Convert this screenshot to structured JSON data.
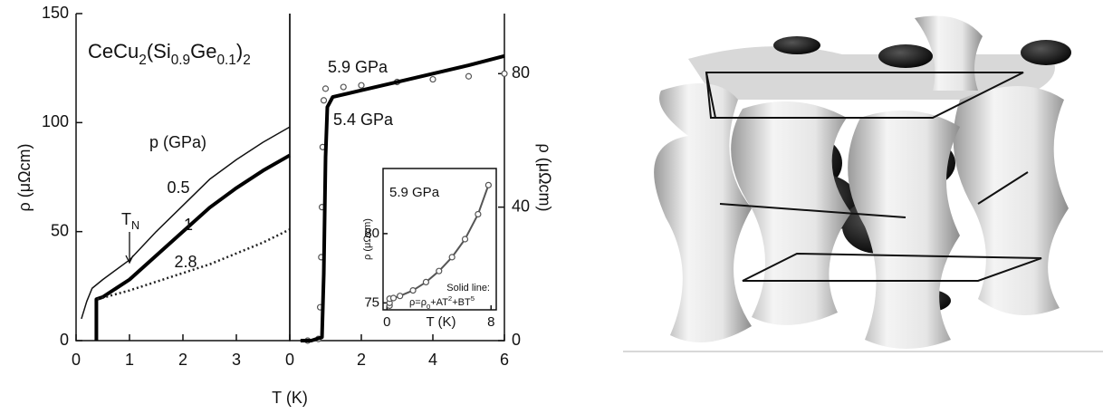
{
  "chart_data": [
    {
      "type": "line",
      "title_parts": [
        {
          "text": "CeCu"
        },
        {
          "text": "2",
          "script": "sub"
        },
        {
          "text": "(Si"
        },
        {
          "text": "0.9",
          "script": "sub"
        },
        {
          "text": "Ge"
        },
        {
          "text": "0.1",
          "script": "sub"
        },
        {
          "text": ")"
        },
        {
          "text": "2",
          "script": "sub"
        }
      ],
      "xlabel": "T (K)",
      "ylabel": "ρ (μΩcm)",
      "xlim": [
        0,
        4
      ],
      "ylim": [
        0,
        150
      ],
      "xticks": [
        0,
        1,
        2,
        3
      ],
      "yticks": [
        0,
        50,
        100,
        150
      ],
      "legend_title": "p (GPa)",
      "marker_label_parts": [
        {
          "text": "T"
        },
        {
          "text": "N",
          "script": "sub"
        }
      ],
      "series": [
        {
          "name": "0.5",
          "color": "#111111",
          "style": "line",
          "x": [
            0.1,
            0.2,
            0.3,
            0.5,
            1,
            1.5,
            2,
            2.5,
            3,
            3.5,
            4
          ],
          "values": [
            10,
            18,
            24,
            28,
            37,
            50,
            62,
            74,
            83,
            91,
            98
          ]
        },
        {
          "name": "1",
          "color": "#000000",
          "style": "thick",
          "x": [
            0.38,
            0.38,
            0.5,
            1,
            1.5,
            2,
            2.5,
            3,
            3.5,
            4
          ],
          "values": [
            0,
            19,
            20,
            28,
            39,
            50,
            61,
            70,
            78,
            85
          ]
        },
        {
          "name": "2.8",
          "color": "#222222",
          "style": "dots",
          "x": [
            0.4,
            1,
            1.5,
            2,
            2.5,
            3,
            3.5,
            4
          ],
          "values": [
            19,
            23,
            27,
            31,
            35,
            40,
            45,
            51
          ]
        }
      ]
    },
    {
      "type": "line",
      "ylabel": "ρ (μΩcm)",
      "y_axis_side": "right",
      "xlim": [
        0,
        6
      ],
      "ylim": [
        0,
        98
      ],
      "xticks": [
        0,
        2,
        4,
        6
      ],
      "yticks": [
        0,
        40,
        80
      ],
      "series": [
        {
          "name": "5.9 GPa",
          "color": "#555555",
          "style": "circles",
          "x": [
            0.5,
            0.8,
            0.85,
            0.88,
            0.9,
            0.92,
            0.95,
            1,
            1.5,
            2,
            3,
            4,
            5,
            6
          ],
          "values": [
            0,
            0.5,
            10,
            25,
            40,
            58,
            72,
            75.5,
            76,
            76.5,
            77.5,
            78.3,
            79.2,
            80
          ]
        },
        {
          "name": "5.4 GPa",
          "color": "#000000",
          "style": "thick",
          "x": [
            0.3,
            0.6,
            0.9,
            0.95,
            1,
            1.05,
            1.2,
            2,
            3,
            4,
            5,
            6
          ],
          "values": [
            0,
            0,
            1,
            20,
            55,
            70,
            73,
            75,
            77.5,
            80,
            82.5,
            85.3
          ]
        }
      ]
    },
    {
      "type": "line",
      "xlabel": "T (K)",
      "ylabel": "ρ (μΩcm)",
      "xlim": [
        -0.3,
        8.4
      ],
      "ylim": [
        74.5,
        84.7
      ],
      "xticks": [
        0,
        8
      ],
      "yticks": [
        75,
        80
      ],
      "fit_label": "Solid line:",
      "formula_parts": [
        {
          "text": "ρ=ρ"
        },
        {
          "text": "0",
          "script": "sub"
        },
        {
          "text": "+AT"
        },
        {
          "text": "2",
          "script": "super"
        },
        {
          "text": "+BT"
        },
        {
          "text": "5",
          "script": "super"
        }
      ],
      "series": [
        {
          "name": "5.9 GPa",
          "color": "#555555",
          "style": "circles-line",
          "x": [
            0.2,
            0.2,
            0.2,
            0.5,
            1,
            2,
            3,
            4,
            5,
            6,
            7,
            7.8
          ],
          "values": [
            74.8,
            75.0,
            75.3,
            75.35,
            75.5,
            75.9,
            76.5,
            77.3,
            78.3,
            79.6,
            81.4,
            83.5
          ]
        }
      ]
    }
  ]
}
